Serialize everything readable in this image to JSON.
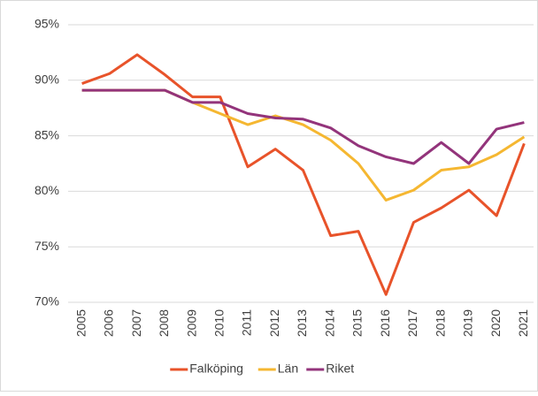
{
  "chart_data": {
    "type": "line",
    "categories": [
      "2005",
      "2006",
      "2007",
      "2008",
      "2009",
      "2010",
      "2011",
      "2012",
      "2013",
      "2014",
      "2015",
      "2016",
      "2017",
      "2018",
      "2019",
      "2020",
      "2021"
    ],
    "series": [
      {
        "name": "Falköping",
        "color": "#e8532a",
        "values": [
          89.7,
          90.6,
          92.3,
          90.5,
          88.5,
          88.5,
          82.2,
          83.8,
          81.9,
          76.0,
          76.4,
          70.7,
          77.2,
          78.5,
          80.1,
          77.8,
          84.3
        ]
      },
      {
        "name": "Län",
        "color": "#f5b731",
        "values": [
          89.1,
          89.1,
          89.1,
          89.1,
          88.0,
          87.0,
          86.0,
          86.8,
          86.0,
          84.6,
          82.5,
          79.2,
          80.1,
          81.9,
          82.2,
          83.3,
          84.9
        ]
      },
      {
        "name": "Riket",
        "color": "#93347b",
        "values": [
          89.1,
          89.1,
          89.1,
          89.1,
          88.0,
          88.0,
          87.0,
          86.6,
          86.5,
          85.7,
          84.1,
          83.1,
          82.5,
          84.4,
          82.5,
          85.6,
          86.2
        ]
      }
    ],
    "ylim": [
      70,
      95
    ],
    "yticks": [
      {
        "value": 70,
        "label": "70%"
      },
      {
        "value": 75,
        "label": "75%"
      },
      {
        "value": 80,
        "label": "80%"
      },
      {
        "value": 85,
        "label": "85%"
      },
      {
        "value": 90,
        "label": "90%"
      },
      {
        "value": 95,
        "label": "95%"
      }
    ],
    "grid": true,
    "legend": "bottom"
  }
}
